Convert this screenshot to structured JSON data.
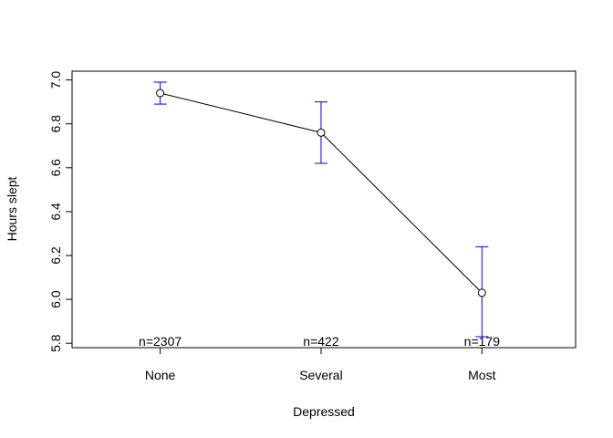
{
  "chart_data": {
    "type": "line",
    "title": "",
    "xlabel": "Depressed",
    "ylabel": "Hours slept",
    "categories": [
      "None",
      "Several",
      "Most"
    ],
    "values": [
      6.94,
      6.76,
      6.03
    ],
    "error_low": [
      6.89,
      6.62,
      5.83
    ],
    "error_high": [
      6.99,
      6.9,
      6.24
    ],
    "n_labels": [
      "n=2307",
      "n=422",
      "n=179"
    ],
    "ylim": [
      5.78,
      7.04
    ],
    "yticks": [
      5.8,
      6.0,
      6.2,
      6.4,
      6.6,
      6.8,
      7.0
    ],
    "ytick_labels": [
      "5.8",
      "6.0",
      "6.2",
      "6.4",
      "6.6",
      "6.8",
      "7.0"
    ],
    "grid": false,
    "colors": {
      "line": "#000000",
      "error_bar": "#0000ff",
      "point": "#000000"
    }
  }
}
